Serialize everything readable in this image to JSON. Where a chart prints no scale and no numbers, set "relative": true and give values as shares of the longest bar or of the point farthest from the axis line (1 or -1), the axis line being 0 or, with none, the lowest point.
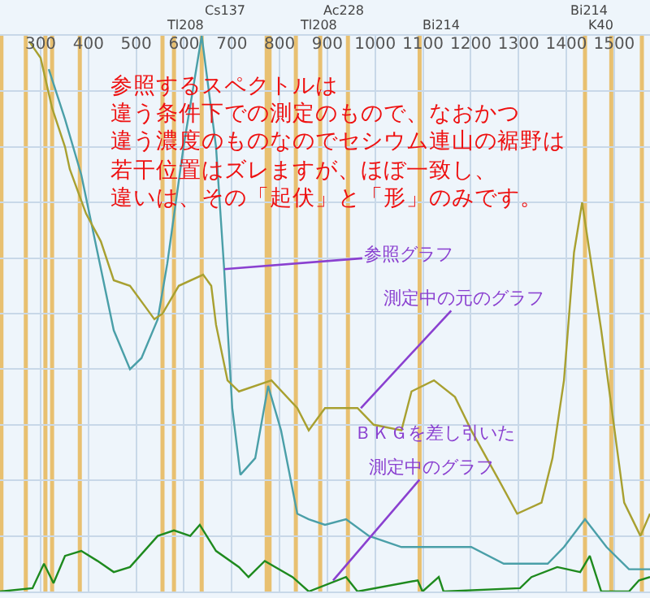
{
  "chart_data": {
    "type": "line",
    "relative": true,
    "xlim": [
      215,
      1575
    ],
    "xticks": [
      300,
      400,
      500,
      600,
      700,
      800,
      900,
      1000,
      1100,
      1200,
      1300,
      1400,
      1500
    ],
    "ylim": [
      0,
      1
    ],
    "grid": true,
    "marker": "none",
    "line_style": "solid",
    "series": [
      {
        "color": "#4a9fa8",
        "x": [
          317,
          351,
          385,
          419,
          453,
          487,
          511,
          545,
          565,
          599,
          637,
          667,
          684,
          701,
          718,
          749,
          776,
          803,
          837,
          861,
          895,
          939,
          987,
          1055,
          1201,
          1269,
          1361,
          1395,
          1439,
          1484,
          1531,
          1575
        ],
        "values": [
          0.94,
          0.85,
          0.75,
          0.61,
          0.47,
          0.4,
          0.42,
          0.49,
          0.59,
          0.8,
          1.0,
          0.8,
          0.58,
          0.33,
          0.21,
          0.24,
          0.37,
          0.29,
          0.14,
          0.13,
          0.12,
          0.13,
          0.1,
          0.08,
          0.08,
          0.05,
          0.05,
          0.08,
          0.13,
          0.08,
          0.04,
          0.04
        ]
      },
      {
        "color": "#a8a030",
        "x": [
          276,
          300,
          324,
          351,
          361,
          395,
          426,
          453,
          487,
          521,
          538,
          555,
          589,
          640,
          657,
          667,
          691,
          715,
          783,
          837,
          861,
          895,
          963,
          997,
          1055,
          1076,
          1123,
          1167,
          1201,
          1259,
          1297,
          1348,
          1371,
          1395,
          1416,
          1433,
          1473,
          1521,
          1555,
          1575
        ],
        "values": [
          0.99,
          0.96,
          0.87,
          0.8,
          0.76,
          0.68,
          0.63,
          0.56,
          0.55,
          0.51,
          0.49,
          0.5,
          0.55,
          0.57,
          0.55,
          0.48,
          0.38,
          0.36,
          0.38,
          0.33,
          0.29,
          0.33,
          0.33,
          0.3,
          0.29,
          0.36,
          0.38,
          0.35,
          0.29,
          0.2,
          0.14,
          0.16,
          0.24,
          0.38,
          0.61,
          0.7,
          0.47,
          0.16,
          0.1,
          0.14
        ]
      },
      {
        "color": "#1e8a1e",
        "x": [
          215,
          283,
          307,
          327,
          351,
          385,
          419,
          453,
          487,
          545,
          579,
          613,
          633,
          667,
          715,
          735,
          769,
          827,
          861,
          939,
          963,
          1089,
          1099,
          1133,
          1143,
          1303,
          1327,
          1381,
          1429,
          1449,
          1473,
          1531,
          1552,
          1575
        ],
        "values": [
          0,
          0.006,
          0.05,
          0.015,
          0.064,
          0.073,
          0.055,
          0.035,
          0.044,
          0.1,
          0.11,
          0.1,
          0.12,
          0.073,
          0.044,
          0.026,
          0.055,
          0.026,
          0,
          0.026,
          0,
          0.02,
          0,
          0.026,
          0,
          0.006,
          0.026,
          0.044,
          0.035,
          0.064,
          0,
          0,
          0.02,
          0.026
        ]
      }
    ],
    "ref_lines": [
      {
        "axis": "x",
        "value": 218,
        "label": null
      },
      {
        "axis": "x",
        "value": 269,
        "label": null
      },
      {
        "axis": "x",
        "value": 310,
        "label": null
      },
      {
        "axis": "x",
        "value": 324,
        "label": null
      },
      {
        "axis": "x",
        "value": 382,
        "label": null
      },
      {
        "axis": "x",
        "value": 555,
        "label": "Tl208"
      },
      {
        "axis": "x",
        "value": 579,
        "label": null
      },
      {
        "axis": "x",
        "value": 637,
        "label": "Cs137"
      },
      {
        "axis": "x",
        "value": 773,
        "label": null
      },
      {
        "axis": "x",
        "value": 779,
        "label": null
      },
      {
        "axis": "x",
        "value": 834,
        "label": "Tl208"
      },
      {
        "axis": "x",
        "value": 885,
        "label": "Ac228"
      },
      {
        "axis": "x",
        "value": 943,
        "label": null
      },
      {
        "axis": "x",
        "value": 1093,
        "label": "Bi214"
      },
      {
        "axis": "x",
        "value": 1439,
        "label": "K40"
      },
      {
        "axis": "x",
        "value": 1494,
        "label": "Bi214"
      },
      {
        "axis": "x",
        "value": 1558,
        "label": null
      }
    ],
    "annotations": [
      "参照するスペクトルは",
      "違う条件下での測定のもので、なおかつ",
      "違う濃度のものなのでセシウム連山の裾野は",
      "若干位置はズレますが、ほぼ一致し、",
      "違いは、その「起伏」と「形」のみです。",
      "ＢＫＧを差し引いた",
      {
        "text": "参照グラフ",
        "x": 684,
        "y": 0.58
      },
      {
        "text": "測定中の元のグラフ",
        "x": 970,
        "y": 0.33
      },
      {
        "text": "測定中のグラフ",
        "x": 912,
        "y": 0.02
      }
    ]
  }
}
